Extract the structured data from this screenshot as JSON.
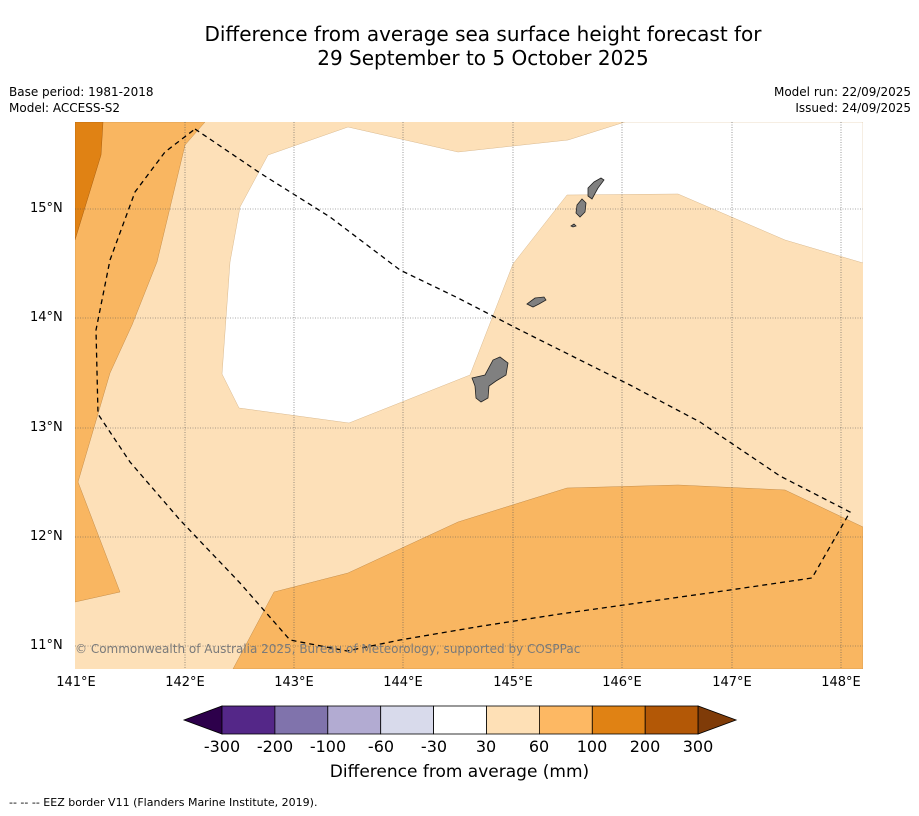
{
  "title": {
    "line1": "Difference from average sea surface height forecast for",
    "line2": "29 September to 5 October 2025"
  },
  "meta_left": {
    "base_period": "Base period: 1981-2018",
    "model": "Model: ACCESS-S2"
  },
  "meta_right": {
    "model_run": "Model run: 22/09/2025",
    "issued": "Issued: 24/09/2025"
  },
  "map": {
    "latitude_labels": [
      "15°N",
      "14°N",
      "13°N",
      "12°N",
      "11°N"
    ],
    "longitude_labels": [
      "141°E",
      "142°E",
      "143°E",
      "144°E",
      "145°E",
      "146°E",
      "147°E",
      "148°E"
    ],
    "copyright": "© Commonwealth of Australia 2025, Bureau of Meteorology, supported by COSPPac",
    "colors": {
      "band_30_60": "#fde0b8",
      "band_60_100": "#f9b661",
      "band_100_200": "#e08214",
      "land": "#808080"
    }
  },
  "colorbar": {
    "labels": [
      "-300",
      "-200",
      "-100",
      "-60",
      "-30",
      "30",
      "60",
      "100",
      "200",
      "300"
    ],
    "colors": [
      "#2d004b",
      "#542788",
      "#8073ac",
      "#b2abd2",
      "#d8daeb",
      "#ffffff",
      "#fee0b6",
      "#fdb863",
      "#e08214",
      "#b35806",
      "#7f3b08"
    ],
    "title": "Difference from average (mm)"
  },
  "footer": "--  --  -- EEZ border V11 (Flanders Marine Institute, 2019)."
}
